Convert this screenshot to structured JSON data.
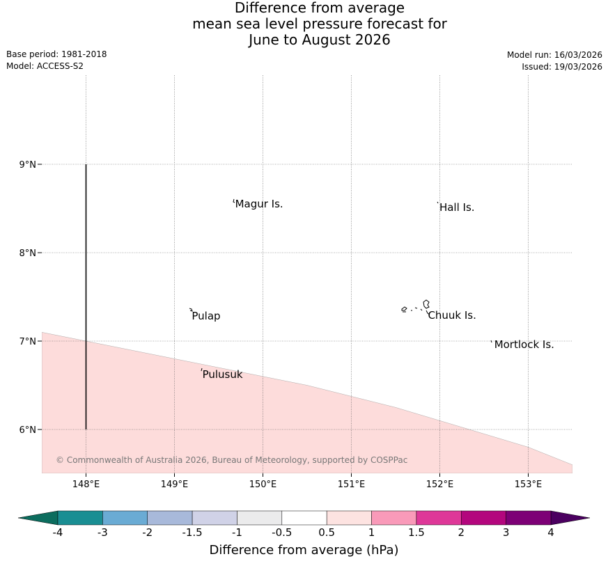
{
  "title": {
    "line1": "Difference from average",
    "line2": "mean sea level pressure forecast for",
    "line3": "June to August 2026"
  },
  "meta": {
    "base_period": "Base period: 1981-2018",
    "model": "Model: ACCESS-S2",
    "model_run": "Model run: 16/03/2026",
    "issued": "Issued: 19/03/2026"
  },
  "map": {
    "lon_range": [
      147.5,
      153.5
    ],
    "lat_range": [
      5.5,
      10.0
    ],
    "lon_ticks": [
      148,
      149,
      150,
      151,
      152,
      153
    ],
    "lon_tick_labels": [
      "148°E",
      "149°E",
      "150°E",
      "151°E",
      "152°E",
      "153°E"
    ],
    "lat_ticks": [
      6,
      7,
      8,
      9
    ],
    "lat_tick_labels": [
      "6°N",
      "7°N",
      "8°N",
      "9°N"
    ],
    "places": [
      {
        "name": "Magur Is.",
        "lon": 149.67,
        "lat": 8.56
      },
      {
        "name": "Hall Is.",
        "lon": 151.98,
        "lat": 8.52
      },
      {
        "name": "Pulap",
        "lon": 149.18,
        "lat": 7.29
      },
      {
        "name": "Chuuk Is.",
        "lon": 151.85,
        "lat": 7.3
      },
      {
        "name": "Mortlock Is.",
        "lon": 152.6,
        "lat": 6.97
      },
      {
        "name": "Pulusuk",
        "lon": 149.3,
        "lat": 6.63
      }
    ],
    "contour_boundary": [
      [
        147.5,
        7.1
      ],
      [
        148.5,
        6.9
      ],
      [
        149.5,
        6.7
      ],
      [
        150.5,
        6.5
      ],
      [
        151.5,
        6.25
      ],
      [
        152.5,
        5.95
      ],
      [
        153.0,
        5.8
      ],
      [
        153.5,
        5.6
      ]
    ],
    "shade_color": "#fddcdb",
    "boundary_line": {
      "lon": 148.0,
      "lat_from": 6.0,
      "lat_to": 9.0
    },
    "copyright": "© Commonwealth of Australia 2026, Bureau of Meteorology, supported by COSPPac"
  },
  "colorbar": {
    "title": "Difference from average (hPa)",
    "labels": [
      "-4",
      "-3",
      "-2",
      "-1.5",
      "-1",
      "-0.5",
      "0.5",
      "1",
      "1.5",
      "2",
      "3",
      "4"
    ],
    "colors": [
      "#1a8e93",
      "#6aabd4",
      "#a8b9da",
      "#d0d2e7",
      "#ebebec",
      "#ffffff",
      "#fde3e1",
      "#f99ab9",
      "#de3898",
      "#b3067d",
      "#7d0076"
    ],
    "under_color": "#0c6d5e",
    "over_color": "#4b0060"
  }
}
